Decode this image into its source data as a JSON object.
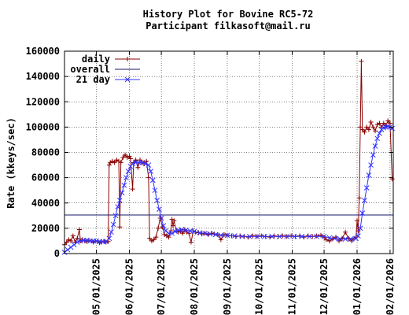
{
  "chart_data": {
    "type": "line",
    "title_line1": "History Plot for Bovine RC5-72",
    "title_line2": "Participant filkasoft@mail.ru",
    "xlabel": "",
    "ylabel": "Rate (kkeys/sec)",
    "x_range": [
      "2025-04-01",
      "2026-02-04"
    ],
    "ylim": [
      0,
      160000
    ],
    "y_ticks": [
      0,
      20000,
      40000,
      60000,
      80000,
      100000,
      120000,
      140000,
      160000
    ],
    "y_tick_labels": [
      "0",
      "20000",
      "40000",
      "60000",
      "80000",
      "100000",
      "120000",
      "140000",
      "160000"
    ],
    "x_ticks": [
      "2025-05-01",
      "2025-06-01",
      "2025-07-01",
      "2025-08-01",
      "2025-09-01",
      "2025-10-01",
      "2025-11-01",
      "2025-12-01",
      "2026-01-01",
      "2026-02-01"
    ],
    "x_tick_labels": [
      "05/01/2025",
      "06/01/2025",
      "07/01/2025",
      "08/01/2025",
      "09/01/2025",
      "10/01/2025",
      "11/01/2025",
      "12/01/2025",
      "01/01/2026",
      "02/01/2026"
    ],
    "grid": true,
    "legend_position": "top-left",
    "series": [
      {
        "name": "daily",
        "color": "#8b0000",
        "marker": "plus",
        "points": [
          [
            "2025-04-01",
            7000
          ],
          [
            "2025-04-03",
            9000
          ],
          [
            "2025-04-05",
            11000
          ],
          [
            "2025-04-07",
            10000
          ],
          [
            "2025-04-09",
            14000
          ],
          [
            "2025-04-11",
            9000
          ],
          [
            "2025-04-13",
            12000
          ],
          [
            "2025-04-15",
            19000
          ],
          [
            "2025-04-16",
            10000
          ],
          [
            "2025-04-18",
            11000
          ],
          [
            "2025-04-20",
            10000
          ],
          [
            "2025-04-22",
            9500
          ],
          [
            "2025-04-24",
            10500
          ],
          [
            "2025-04-26",
            10000
          ],
          [
            "2025-04-28",
            9000
          ],
          [
            "2025-04-30",
            10000
          ],
          [
            "2025-05-02",
            9500
          ],
          [
            "2025-05-04",
            8500
          ],
          [
            "2025-05-06",
            9000
          ],
          [
            "2025-05-08",
            10000
          ],
          [
            "2025-05-10",
            9000
          ],
          [
            "2025-05-12",
            9500
          ],
          [
            "2025-05-13",
            70000
          ],
          [
            "2025-05-14",
            72000
          ],
          [
            "2025-05-16",
            73000
          ],
          [
            "2025-05-18",
            72000
          ],
          [
            "2025-05-20",
            74000
          ],
          [
            "2025-05-22",
            73000
          ],
          [
            "2025-05-23",
            21000
          ],
          [
            "2025-05-24",
            72000
          ],
          [
            "2025-05-26",
            76000
          ],
          [
            "2025-05-28",
            78000
          ],
          [
            "2025-05-30",
            76000
          ],
          [
            "2025-06-01",
            77000
          ],
          [
            "2025-06-02",
            75000
          ],
          [
            "2025-06-04",
            51000
          ],
          [
            "2025-06-05",
            72000
          ],
          [
            "2025-06-07",
            74000
          ],
          [
            "2025-06-09",
            68000
          ],
          [
            "2025-06-11",
            74000
          ],
          [
            "2025-06-13",
            72000
          ],
          [
            "2025-06-15",
            71000
          ],
          [
            "2025-06-17",
            73000
          ],
          [
            "2025-06-19",
            60000
          ],
          [
            "2025-06-20",
            12000
          ],
          [
            "2025-06-22",
            10000
          ],
          [
            "2025-06-24",
            11000
          ],
          [
            "2025-06-26",
            13000
          ],
          [
            "2025-06-28",
            20000
          ],
          [
            "2025-06-30",
            28000
          ],
          [
            "2025-07-02",
            21000
          ],
          [
            "2025-07-04",
            15000
          ],
          [
            "2025-07-06",
            14000
          ],
          [
            "2025-07-08",
            13000
          ],
          [
            "2025-07-10",
            18000
          ],
          [
            "2025-07-11",
            27000
          ],
          [
            "2025-07-12",
            22000
          ],
          [
            "2025-07-13",
            26000
          ],
          [
            "2025-07-15",
            18000
          ],
          [
            "2025-07-17",
            17000
          ],
          [
            "2025-07-19",
            18000
          ],
          [
            "2025-07-21",
            16000
          ],
          [
            "2025-07-23",
            19000
          ],
          [
            "2025-07-25",
            17000
          ],
          [
            "2025-07-27",
            16000
          ],
          [
            "2025-07-29",
            9000
          ],
          [
            "2025-07-31",
            18000
          ],
          [
            "2025-08-02",
            17000
          ],
          [
            "2025-08-05",
            16500
          ],
          [
            "2025-08-08",
            15500
          ],
          [
            "2025-08-11",
            16000
          ],
          [
            "2025-08-14",
            15000
          ],
          [
            "2025-08-17",
            16000
          ],
          [
            "2025-08-20",
            15500
          ],
          [
            "2025-08-23",
            15000
          ],
          [
            "2025-08-26",
            11000
          ],
          [
            "2025-08-29",
            15000
          ],
          [
            "2025-09-01",
            14500
          ],
          [
            "2025-09-05",
            14000
          ],
          [
            "2025-09-09",
            13500
          ],
          [
            "2025-09-13",
            14000
          ],
          [
            "2025-09-17",
            13500
          ],
          [
            "2025-09-21",
            13000
          ],
          [
            "2025-09-25",
            14000
          ],
          [
            "2025-09-29",
            13500
          ],
          [
            "2025-10-03",
            14000
          ],
          [
            "2025-10-07",
            13500
          ],
          [
            "2025-10-11",
            13000
          ],
          [
            "2025-10-15",
            14000
          ],
          [
            "2025-10-19",
            13500
          ],
          [
            "2025-10-23",
            14000
          ],
          [
            "2025-10-27",
            13500
          ],
          [
            "2025-10-31",
            14000
          ],
          [
            "2025-11-04",
            13500
          ],
          [
            "2025-11-08",
            14000
          ],
          [
            "2025-11-12",
            13000
          ],
          [
            "2025-11-16",
            14000
          ],
          [
            "2025-11-20",
            13500
          ],
          [
            "2025-11-24",
            14000
          ],
          [
            "2025-11-28",
            14500
          ],
          [
            "2025-12-01",
            13000
          ],
          [
            "2025-12-03",
            11000
          ],
          [
            "2025-12-06",
            10000
          ],
          [
            "2025-12-09",
            11500
          ],
          [
            "2025-12-12",
            13000
          ],
          [
            "2025-12-15",
            10000
          ],
          [
            "2025-12-18",
            12000
          ],
          [
            "2025-12-21",
            17000
          ],
          [
            "2025-12-24",
            12000
          ],
          [
            "2025-12-27",
            10000
          ],
          [
            "2025-12-29",
            12000
          ],
          [
            "2025-12-31",
            13000
          ],
          [
            "2026-01-01",
            26000
          ],
          [
            "2026-01-02",
            18000
          ],
          [
            "2026-01-03",
            44000
          ],
          [
            "2026-01-04",
            100000
          ],
          [
            "2026-01-05",
            152000
          ],
          [
            "2026-01-06",
            98000
          ],
          [
            "2026-01-08",
            96000
          ],
          [
            "2026-01-10",
            100000
          ],
          [
            "2026-01-12",
            98000
          ],
          [
            "2026-01-14",
            104000
          ],
          [
            "2026-01-16",
            100000
          ],
          [
            "2026-01-18",
            97000
          ],
          [
            "2026-01-20",
            102000
          ],
          [
            "2026-01-22",
            103000
          ],
          [
            "2026-01-24",
            100000
          ],
          [
            "2026-01-26",
            103000
          ],
          [
            "2026-01-28",
            101000
          ],
          [
            "2026-01-30",
            105000
          ],
          [
            "2026-02-01",
            103000
          ],
          [
            "2026-02-03",
            59000
          ]
        ]
      },
      {
        "name": "overall",
        "color": "#1a1a6e",
        "marker": "none",
        "points": [
          [
            "2025-04-01",
            30500
          ],
          [
            "2026-02-04",
            30500
          ]
        ]
      },
      {
        "name": "21 day",
        "color": "#3333ff",
        "marker": "x",
        "points": [
          [
            "2025-04-01",
            1000
          ],
          [
            "2025-04-04",
            3000
          ],
          [
            "2025-04-07",
            5000
          ],
          [
            "2025-04-10",
            7000
          ],
          [
            "2025-04-13",
            9000
          ],
          [
            "2025-04-16",
            10000
          ],
          [
            "2025-04-19",
            10500
          ],
          [
            "2025-04-22",
            10500
          ],
          [
            "2025-04-25",
            10000
          ],
          [
            "2025-04-28",
            10000
          ],
          [
            "2025-05-01",
            10000
          ],
          [
            "2025-05-04",
            9500
          ],
          [
            "2025-05-07",
            9500
          ],
          [
            "2025-05-10",
            9500
          ],
          [
            "2025-05-13",
            12000
          ],
          [
            "2025-05-15",
            17000
          ],
          [
            "2025-05-17",
            23000
          ],
          [
            "2025-05-19",
            30000
          ],
          [
            "2025-05-21",
            37000
          ],
          [
            "2025-05-23",
            42000
          ],
          [
            "2025-05-25",
            48000
          ],
          [
            "2025-05-27",
            54000
          ],
          [
            "2025-05-29",
            60000
          ],
          [
            "2025-05-31",
            65000
          ],
          [
            "2025-06-02",
            69000
          ],
          [
            "2025-06-04",
            71000
          ],
          [
            "2025-06-07",
            72000
          ],
          [
            "2025-06-10",
            72000
          ],
          [
            "2025-06-13",
            72000
          ],
          [
            "2025-06-16",
            71000
          ],
          [
            "2025-06-19",
            70000
          ],
          [
            "2025-06-21",
            65000
          ],
          [
            "2025-06-23",
            58000
          ],
          [
            "2025-06-25",
            50000
          ],
          [
            "2025-06-27",
            42000
          ],
          [
            "2025-06-29",
            35000
          ],
          [
            "2025-07-01",
            28000
          ],
          [
            "2025-07-03",
            22000
          ],
          [
            "2025-07-05",
            18000
          ],
          [
            "2025-07-08",
            16000
          ],
          [
            "2025-07-11",
            16000
          ],
          [
            "2025-07-14",
            17500
          ],
          [
            "2025-07-17",
            18500
          ],
          [
            "2025-07-20",
            19000
          ],
          [
            "2025-07-24",
            18500
          ],
          [
            "2025-07-28",
            18000
          ],
          [
            "2025-08-01",
            17500
          ],
          [
            "2025-08-06",
            16500
          ],
          [
            "2025-08-11",
            16000
          ],
          [
            "2025-08-16",
            15500
          ],
          [
            "2025-08-21",
            15000
          ],
          [
            "2025-08-26",
            14500
          ],
          [
            "2025-09-01",
            14500
          ],
          [
            "2025-09-08",
            14000
          ],
          [
            "2025-09-15",
            13500
          ],
          [
            "2025-09-22",
            13500
          ],
          [
            "2025-09-29",
            13500
          ],
          [
            "2025-10-06",
            13500
          ],
          [
            "2025-10-13",
            13500
          ],
          [
            "2025-10-20",
            13500
          ],
          [
            "2025-10-27",
            13500
          ],
          [
            "2025-11-03",
            13500
          ],
          [
            "2025-11-10",
            13500
          ],
          [
            "2025-11-17",
            13500
          ],
          [
            "2025-11-24",
            13500
          ],
          [
            "2025-12-01",
            13500
          ],
          [
            "2025-12-06",
            12500
          ],
          [
            "2025-12-11",
            12000
          ],
          [
            "2025-12-16",
            11500
          ],
          [
            "2025-12-21",
            11500
          ],
          [
            "2025-12-26",
            11500
          ],
          [
            "2025-12-31",
            12000
          ],
          [
            "2026-01-02",
            14000
          ],
          [
            "2026-01-04",
            20000
          ],
          [
            "2026-01-06",
            32000
          ],
          [
            "2026-01-08",
            42000
          ],
          [
            "2026-01-10",
            52000
          ],
          [
            "2026-01-12",
            62000
          ],
          [
            "2026-01-14",
            70000
          ],
          [
            "2026-01-16",
            78000
          ],
          [
            "2026-01-18",
            85000
          ],
          [
            "2026-01-20",
            91000
          ],
          [
            "2026-01-22",
            95000
          ],
          [
            "2026-01-24",
            98000
          ],
          [
            "2026-01-26",
            99500
          ],
          [
            "2026-01-28",
            100000
          ],
          [
            "2026-01-30",
            100500
          ],
          [
            "2026-02-01",
            100000
          ],
          [
            "2026-02-03",
            99000
          ]
        ]
      }
    ]
  }
}
